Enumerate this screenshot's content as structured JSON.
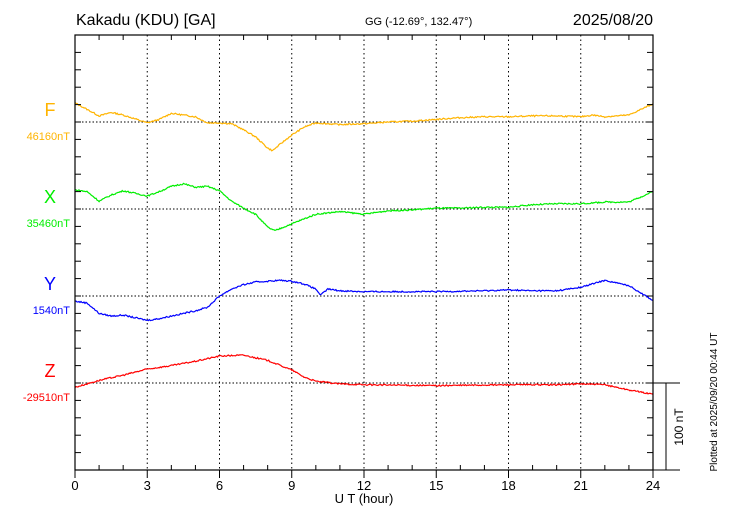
{
  "header": {
    "station": "Kakadu (KDU)  [GA]",
    "coords": "GG (-12.69°, 132.47°)",
    "date": "2025/08/20"
  },
  "footer": {
    "plotted": "Plotted at 2025/09/20 00:44 UT",
    "scale_label": "100 nT"
  },
  "chart_data": {
    "type": "line",
    "title": "Kakadu (KDU) [GA] 2025/08/20",
    "xlabel": "U T (hour)",
    "xlim": [
      0,
      24
    ],
    "xticks": [
      "0",
      "3",
      "6",
      "9",
      "12",
      "15",
      "18",
      "21",
      "24"
    ],
    "scale_nT": 100,
    "grid": "dotted",
    "series": [
      {
        "name": "F",
        "baseline_label": "46160nT",
        "color": "#ffb400",
        "x": [
          0,
          1,
          1.5,
          2,
          3,
          3.5,
          4,
          4.5,
          5,
          5.5,
          6,
          6.5,
          7,
          7.5,
          8,
          8.2,
          8.5,
          9,
          9.5,
          10,
          10.5,
          11,
          12,
          13,
          14,
          15,
          16,
          17,
          18,
          19,
          20,
          21,
          21.5,
          22,
          23,
          24
        ],
        "y": [
          22,
          7,
          11,
          8,
          -1,
          3,
          10,
          8,
          6,
          -1,
          -1,
          -2,
          -9,
          -17,
          -30,
          -33,
          -26,
          -15,
          -6,
          -1,
          -2,
          -3,
          -2,
          0,
          1,
          3,
          5,
          6,
          6,
          7,
          7,
          6,
          8,
          6,
          8,
          21
        ]
      },
      {
        "name": "X",
        "baseline_label": "35460nT",
        "color": "#00ee00",
        "x": [
          0,
          0.5,
          1,
          1.5,
          2,
          2.5,
          3,
          3.5,
          4,
          4.5,
          5,
          5.5,
          6,
          6.5,
          7,
          7.5,
          8,
          8.3,
          9,
          10,
          11,
          12,
          13,
          14,
          15,
          16,
          17,
          18,
          19,
          20,
          21,
          22,
          23,
          24
        ],
        "y": [
          22,
          20,
          9,
          16,
          21,
          18,
          15,
          20,
          26,
          29,
          25,
          26,
          21,
          9,
          1,
          -6,
          -21,
          -25,
          -17,
          -6,
          -3,
          -6,
          -2,
          -1,
          1,
          1,
          2,
          2,
          5,
          6,
          6,
          8,
          8,
          20
        ]
      },
      {
        "name": "Y",
        "baseline_label": "1540nT",
        "color": "#0000ff",
        "x": [
          0,
          0.5,
          1,
          1.5,
          2,
          3,
          3.5,
          4,
          5,
          5.5,
          6,
          6.5,
          7,
          7.5,
          8,
          8.5,
          9,
          9.5,
          10,
          10.2,
          10.5,
          11,
          12,
          15,
          17,
          18,
          19,
          20,
          21,
          22,
          22.5,
          23,
          24
        ],
        "y": [
          -6,
          -8,
          -20,
          -23,
          -22,
          -28,
          -26,
          -23,
          -17,
          -13,
          0,
          8,
          13,
          16,
          17,
          18,
          17,
          14,
          8,
          1,
          8,
          6,
          5,
          5,
          6,
          7,
          6,
          6,
          10,
          18,
          15,
          12,
          -5
        ]
      },
      {
        "name": "Z",
        "baseline_label": "-29510nT",
        "color": "#ff0000",
        "x": [
          0,
          1,
          2,
          3,
          4,
          5,
          6,
          7,
          8,
          9,
          9.5,
          10,
          11,
          12,
          15,
          18,
          20,
          21,
          22,
          23,
          24
        ],
        "y": [
          -5,
          3,
          9,
          16,
          20,
          25,
          31,
          32,
          26,
          15,
          7,
          2,
          -1,
          -2,
          -3,
          -2,
          -2,
          -1,
          -2,
          -8,
          -13
        ]
      }
    ]
  }
}
